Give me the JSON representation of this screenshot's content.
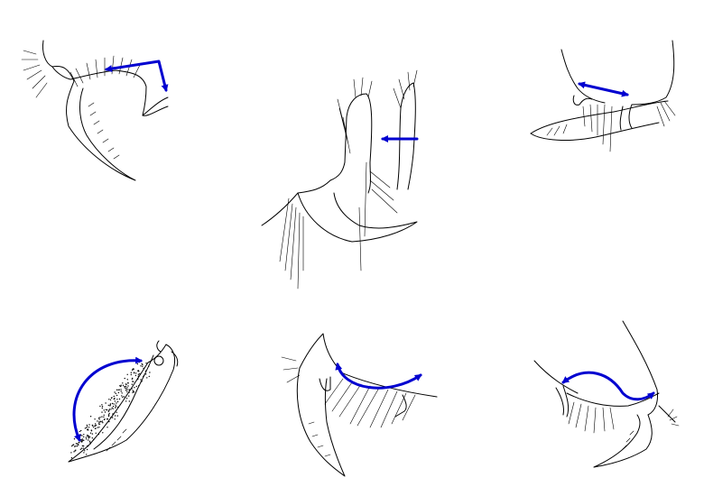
{
  "figure": {
    "background": "#ffffff",
    "line_color": "#000000",
    "arrow_color": "#0000d0",
    "panels": [
      {
        "index": 1,
        "row": "top",
        "column": "left",
        "arrow_type": "bent-double-headed-arrow"
      },
      {
        "index": 2,
        "row": "top",
        "column": "center",
        "arrow_type": "single-arrow-left"
      },
      {
        "index": 3,
        "row": "top",
        "column": "right",
        "arrow_type": "straight-double-headed-arrow"
      },
      {
        "index": 4,
        "row": "bottom",
        "column": "left",
        "arrow_type": "curved-double-headed-arrow"
      },
      {
        "index": 5,
        "row": "bottom",
        "column": "center",
        "arrow_type": "curved-double-headed-arrow"
      },
      {
        "index": 6,
        "row": "bottom",
        "column": "right",
        "arrow_type": "curved-double-headed-arrow"
      }
    ]
  }
}
